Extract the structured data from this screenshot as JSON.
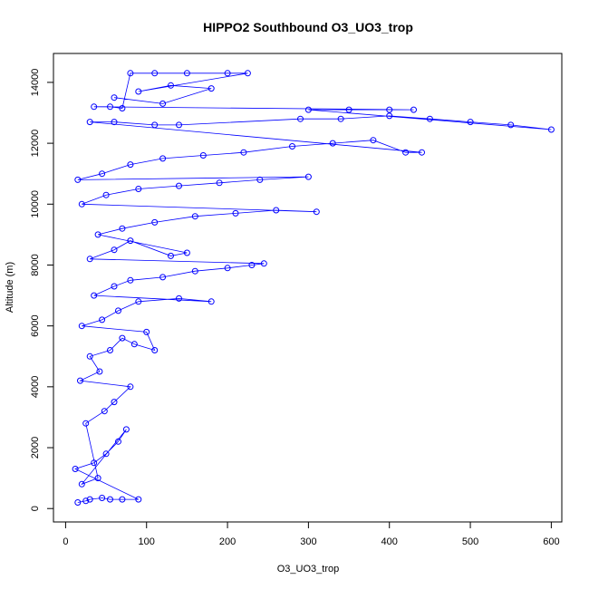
{
  "chart_data": {
    "type": "scatter",
    "title": "HIPPO2 Southbound O3_UO3_trop",
    "xlabel": "O3_UO3_trop",
    "ylabel": "Altitude (m)",
    "xlim": [
      -15,
      613
    ],
    "ylim": [
      -440,
      14950
    ],
    "xticks": [
      0,
      100,
      200,
      300,
      400,
      500,
      600
    ],
    "yticks": [
      0,
      2000,
      4000,
      6000,
      8000,
      10000,
      12000,
      14000
    ],
    "grid": false,
    "legend": "none",
    "marker": "open-circle",
    "connected_by_lines": true,
    "series_color": "#0000ff",
    "series": [
      {
        "name": "",
        "points": [
          [
            15,
            200
          ],
          [
            25,
            250
          ],
          [
            30,
            300
          ],
          [
            45,
            350
          ],
          [
            55,
            300
          ],
          [
            70,
            300
          ],
          [
            90,
            300
          ],
          [
            12,
            1300
          ],
          [
            35,
            1500
          ],
          [
            50,
            1800
          ],
          [
            65,
            2200
          ],
          [
            75,
            2600
          ],
          [
            20,
            800
          ],
          [
            40,
            1000
          ],
          [
            25,
            2800
          ],
          [
            48,
            3200
          ],
          [
            60,
            3500
          ],
          [
            80,
            4000
          ],
          [
            18,
            4200
          ],
          [
            42,
            4500
          ],
          [
            30,
            5000
          ],
          [
            55,
            5200
          ],
          [
            70,
            5600
          ],
          [
            85,
            5400
          ],
          [
            110,
            5200
          ],
          [
            100,
            5800
          ],
          [
            20,
            6000
          ],
          [
            45,
            6200
          ],
          [
            65,
            6500
          ],
          [
            90,
            6800
          ],
          [
            140,
            6900
          ],
          [
            180,
            6800
          ],
          [
            35,
            7000
          ],
          [
            60,
            7300
          ],
          [
            80,
            7500
          ],
          [
            120,
            7600
          ],
          [
            160,
            7800
          ],
          [
            200,
            7900
          ],
          [
            230,
            8000
          ],
          [
            245,
            8050
          ],
          [
            30,
            8200
          ],
          [
            60,
            8500
          ],
          [
            80,
            8800
          ],
          [
            130,
            8300
          ],
          [
            150,
            8400
          ],
          [
            40,
            9000
          ],
          [
            70,
            9200
          ],
          [
            110,
            9400
          ],
          [
            160,
            9600
          ],
          [
            210,
            9700
          ],
          [
            260,
            9800
          ],
          [
            310,
            9750
          ],
          [
            20,
            10000
          ],
          [
            50,
            10300
          ],
          [
            90,
            10500
          ],
          [
            140,
            10600
          ],
          [
            190,
            10700
          ],
          [
            240,
            10800
          ],
          [
            300,
            10900
          ],
          [
            15,
            10800
          ],
          [
            45,
            11000
          ],
          [
            80,
            11300
          ],
          [
            120,
            11500
          ],
          [
            170,
            11600
          ],
          [
            220,
            11700
          ],
          [
            280,
            11900
          ],
          [
            330,
            12000
          ],
          [
            380,
            12100
          ],
          [
            420,
            11700
          ],
          [
            440,
            11700
          ],
          [
            30,
            12700
          ],
          [
            60,
            12700
          ],
          [
            110,
            12600
          ],
          [
            140,
            12600
          ],
          [
            290,
            12800
          ],
          [
            340,
            12800
          ],
          [
            400,
            12900
          ],
          [
            450,
            12800
          ],
          [
            500,
            12700
          ],
          [
            550,
            12600
          ],
          [
            600,
            12450
          ],
          [
            300,
            13100
          ],
          [
            350,
            13100
          ],
          [
            400,
            13100
          ],
          [
            430,
            13100
          ],
          [
            35,
            13200
          ],
          [
            55,
            13200
          ],
          [
            70,
            13150
          ],
          [
            80,
            14300
          ],
          [
            110,
            14300
          ],
          [
            150,
            14300
          ],
          [
            200,
            14300
          ],
          [
            225,
            14300
          ],
          [
            90,
            13700
          ],
          [
            130,
            13900
          ],
          [
            180,
            13800
          ],
          [
            120,
            13300
          ],
          [
            60,
            13500
          ]
        ]
      }
    ]
  }
}
